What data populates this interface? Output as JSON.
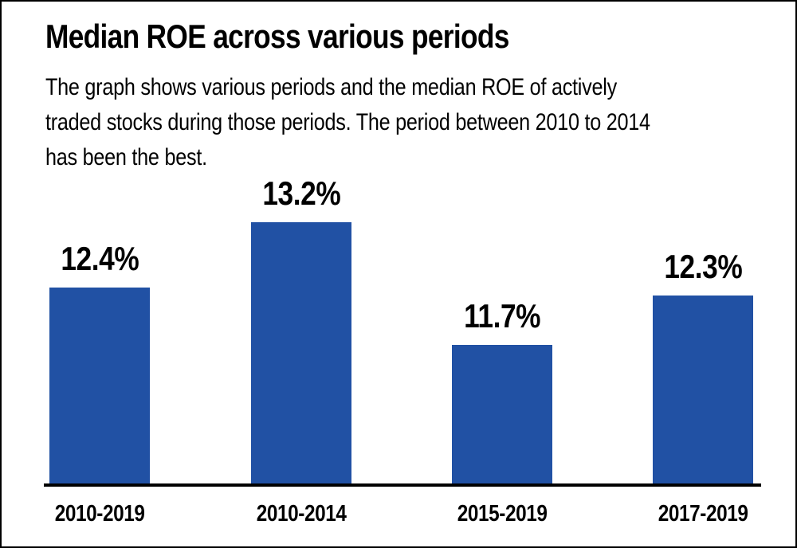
{
  "frame": {
    "background": "#ffffff",
    "border_color": "#000000",
    "text_color": "#000000"
  },
  "header": {
    "title": "Median ROE across various periods",
    "subtitle_lines": [
      "The graph shows various periods and the median ROE of actively",
      "traded stocks during those periods. The period between 2010 to 2014",
      "has been the best."
    ]
  },
  "chart_data": {
    "type": "bar",
    "title": "Median ROE across various periods",
    "categories": [
      "2010-2019",
      "2010-2014",
      "2015-2019",
      "2017-2019"
    ],
    "values": [
      12.4,
      13.2,
      11.7,
      12.3
    ],
    "value_labels": [
      "12.4%",
      "13.2%",
      "11.7%",
      "12.3%"
    ],
    "unit": "%",
    "xlabel": "",
    "ylabel": "",
    "ylim": [
      10,
      13.5
    ],
    "grid": false,
    "legend": "none",
    "bar_color": "#2151A4",
    "axis_line_color": "#000000",
    "label_color": "#000000"
  }
}
